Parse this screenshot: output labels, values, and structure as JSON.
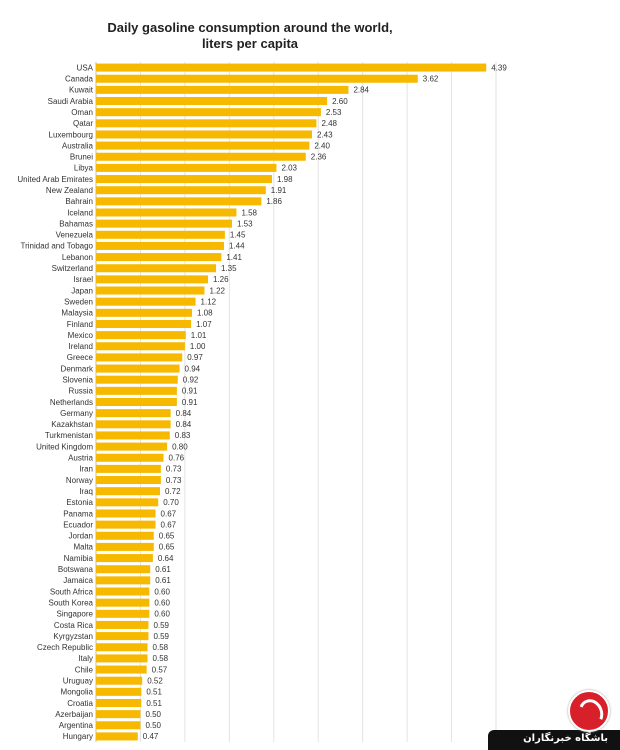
{
  "chart_data": {
    "type": "bar",
    "orientation": "horizontal",
    "title": "Daily gasoline consumption around the world, liters per capita",
    "title_lines": [
      "Daily gasoline consumption around the world,",
      "liters per capita"
    ],
    "bar_color": "#f7b900",
    "grid": true,
    "xlim": [
      0,
      4.5
    ],
    "categories": [
      "USA",
      "Canada",
      "Kuwait",
      "Saudi Arabia",
      "Oman",
      "Qatar",
      "Luxembourg",
      "Australia",
      "Brunei",
      "Libya",
      "United Arab Emirates",
      "New Zealand",
      "Bahrain",
      "Iceland",
      "Bahamas",
      "Venezuela",
      "Trinidad and Tobago",
      "Lebanon",
      "Switzerland",
      "Israel",
      "Japan",
      "Sweden",
      "Malaysia",
      "Finland",
      "Mexico",
      "Ireland",
      "Greece",
      "Denmark",
      "Slovenia",
      "Russia",
      "Netherlands",
      "Germany",
      "Kazakhstan",
      "Turkmenistan",
      "United Kingdom",
      "Austria",
      "Iran",
      "Norway",
      "Iraq",
      "Estonia",
      "Panama",
      "Ecuador",
      "Jordan",
      "Malta",
      "Namibia",
      "Botswana",
      "Jamaica",
      "South Africa",
      "South Korea",
      "Singapore",
      "Costa Rica",
      "Kyrgyzstan",
      "Czech Republic",
      "Italy",
      "Chile",
      "Uruguay",
      "Mongolia",
      "Croatia",
      "Azerbaijan",
      "Argentina",
      "Hungary"
    ],
    "values": [
      4.39,
      3.62,
      2.84,
      2.6,
      2.53,
      2.48,
      2.43,
      2.4,
      2.36,
      2.03,
      1.98,
      1.91,
      1.86,
      1.58,
      1.53,
      1.45,
      1.44,
      1.41,
      1.35,
      1.26,
      1.22,
      1.12,
      1.08,
      1.07,
      1.01,
      1.0,
      0.97,
      0.94,
      0.92,
      0.91,
      0.91,
      0.84,
      0.84,
      0.83,
      0.8,
      0.76,
      0.73,
      0.73,
      0.72,
      0.7,
      0.67,
      0.67,
      0.65,
      0.65,
      0.64,
      0.61,
      0.61,
      0.6,
      0.6,
      0.6,
      0.59,
      0.59,
      0.58,
      0.58,
      0.57,
      0.52,
      0.51,
      0.51,
      0.5,
      0.5,
      0.47
    ],
    "value_labels": [
      "4.39",
      "3.62",
      "2.84",
      "2.60",
      "2.53",
      "2.48",
      "2.43",
      "2.40",
      "2.36",
      "2.03",
      "1.98",
      "1.91",
      "1.86",
      "1.58",
      "1.53",
      "1.45",
      "1.44",
      "1.41",
      "1.35",
      "1.26",
      "1.22",
      "1.12",
      "1.08",
      "1.07",
      "1.01",
      "1.00",
      "0.97",
      "0.94",
      "0.92",
      "0.91",
      "0.91",
      "0.84",
      "0.84",
      "0.83",
      "0.80",
      "0.76",
      "0.73",
      "0.73",
      "0.72",
      "0.70",
      "0.67",
      "0.67",
      "0.65",
      "0.65",
      "0.64",
      "0.61",
      "0.61",
      "0.60",
      "0.60",
      "0.60",
      "0.59",
      "0.59",
      "0.58",
      "0.58",
      "0.57",
      "0.52",
      "0.51",
      "0.51",
      "0.50",
      "0.50",
      "0.47"
    ]
  },
  "watermark": {
    "text": "باشگاه خبرنگاران"
  }
}
